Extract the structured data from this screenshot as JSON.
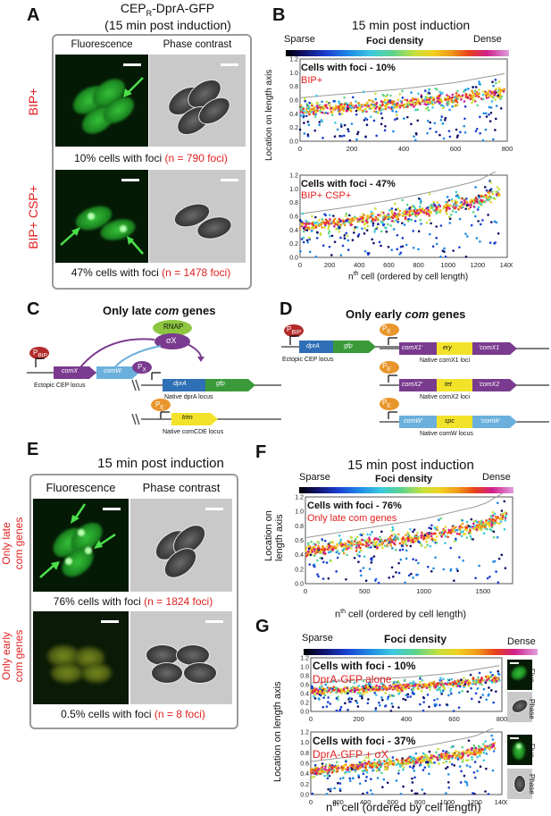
{
  "panels": {
    "a": {
      "letter": "A",
      "title_line1": "CEP",
      "title_sub": "R",
      "title_line1_end": "-DprA-GFP",
      "title_line2": "(15 min post induction)",
      "col_fluorescence": "Fluorescence",
      "col_phase": "Phase contrast",
      "row1_label": "BIP+",
      "row2_label": "BIP+ CSP+",
      "row1_caption": "10% cells with foci",
      "row1_count": "(n = 790 foci)",
      "row2_caption": "47% cells with foci",
      "row2_count": "(n = 1478 foci)"
    },
    "b": {
      "letter": "B",
      "title": "15 min post induction",
      "cbar_left": "Sparse",
      "cbar_mid": "Foci density",
      "cbar_right": "Dense",
      "plot1_title": "Cells with foci - 10%",
      "plot1_sub": "BIP+",
      "plot2_title": "Cells with foci - 47%",
      "plot2_sub": "BIP+ CSP+",
      "ylabel": "Location on length axis",
      "xlabel_pre": "n",
      "xlabel_sup": "th",
      "xlabel_post": " cell (ordered by cell length)"
    },
    "c": {
      "letter": "C",
      "title_pre": "Only late ",
      "title_it": "com",
      "title_post": " genes",
      "rnap": "RNAP",
      "sigma": "σX",
      "pbip": "P",
      "pbip_sub": "BIP",
      "comx": "comX",
      "comw": "comW",
      "px": "P",
      "px_sub": "X",
      "dpra": "dprA",
      "gfp": "gfp",
      "pe": "P",
      "pe_sub": "E",
      "trim": "trim",
      "ectopic": "Ectopic CEP locus",
      "native_dpra": "Native dprA locus",
      "native_comcde": "Native comCDE locus"
    },
    "d": {
      "letter": "D",
      "title_pre": "Only early ",
      "title_it": "com",
      "title_post": " genes",
      "pbip": "P",
      "pbip_sub": "BIP",
      "dpra": "dprA",
      "gfp": "gfp",
      "ectopic": "Ectopic CEP locus",
      "pe": "P",
      "pe_sub": "E",
      "comx1a": "comX1'",
      "ery": "ery",
      "comx1b": "'comX1",
      "native_x1": "Native comX1 loci",
      "comx2a": "comX2'",
      "tet": "tet",
      "comx2b": "'comX2",
      "native_x2": "Native comX2 loci",
      "comwa": "comW'",
      "spc": "spc",
      "comwb": "'comW",
      "native_w": "Native comW locus"
    },
    "e": {
      "letter": "E",
      "title": "15 min post induction",
      "col_fluorescence": "Fluorescence",
      "col_phase": "Phase contrast",
      "row1_label_a": "Only late",
      "row1_label_b": "com genes",
      "row2_label_a": "Only early",
      "row2_label_b": "com genes",
      "row1_caption": "76% cells with foci",
      "row1_count": "(n = 1824 foci)",
      "row2_caption": "0.5% cells with foci",
      "row2_count": "(n = 8 foci)"
    },
    "f": {
      "letter": "F",
      "title": "15 min post induction",
      "cbar_left": "Sparse",
      "cbar_mid": "Foci density",
      "cbar_right": "Dense",
      "plot_title": "Cells with foci - 76%",
      "plot_sub": "Only late com genes",
      "ylabel_a": "Location on",
      "ylabel_b": "length axis",
      "xlabel_pre": "n",
      "xlabel_sup": "th",
      "xlabel_post": " cell (ordered by cell length)"
    },
    "g": {
      "letter": "G",
      "cbar_left": "Sparse",
      "cbar_mid": "Foci density",
      "cbar_right": "Dense",
      "plot1_title": "Cells with foci - 10%",
      "plot1_sub": "DprA-GFP alone",
      "plot2_title": "Cells with foci - 37%",
      "plot2_sub": "DprA-GFP + σX",
      "fluo": "Fluo.",
      "phase": "Phase",
      "ylabel": "Location on  length axis",
      "xlabel_pre": "n",
      "xlabel_sup": "th",
      "xlabel_post": " cell (ordered by cell length)"
    }
  },
  "chart_data": [
    {
      "type": "scatter",
      "panel": "B-top",
      "title": "Cells with foci - 10%",
      "subtitle": "BIP+",
      "ylabel": "Location on length axis",
      "xlim": [
        0,
        800
      ],
      "ylim": [
        0,
        1.2
      ],
      "x_ticks": [
        0,
        200,
        400,
        600,
        800
      ],
      "y_ticks": [
        0.0,
        0.2,
        0.4,
        0.6,
        0.8,
        1.0,
        1.2
      ],
      "n_cells": 790,
      "ridge": {
        "x": [
          0,
          200,
          400,
          600,
          790
        ],
        "y": [
          0.45,
          0.5,
          0.55,
          0.62,
          0.72
        ]
      }
    },
    {
      "type": "scatter",
      "panel": "B-bottom",
      "title": "Cells with foci - 47%",
      "subtitle": "BIP+ CSP+",
      "xlabel": "nth cell (ordered by cell length)",
      "xlim": [
        0,
        1400
      ],
      "ylim": [
        0,
        1.2
      ],
      "x_ticks": [
        0,
        200,
        400,
        600,
        800,
        1000,
        1200,
        1400
      ],
      "y_ticks": [
        0.0,
        0.2,
        0.4,
        0.6,
        0.8,
        1.0,
        1.2
      ],
      "n_cells": 1350,
      "ridge": {
        "x": [
          0,
          300,
          600,
          900,
          1200,
          1350
        ],
        "y": [
          0.45,
          0.52,
          0.6,
          0.7,
          0.82,
          0.95
        ]
      }
    },
    {
      "type": "scatter",
      "panel": "F",
      "title": "Cells with foci - 76%",
      "subtitle": "Only late com genes",
      "xlabel": "nth cell (ordered by cell length)",
      "xlim": [
        0,
        1750
      ],
      "ylim": [
        0,
        1.2
      ],
      "x_ticks": [
        0,
        500,
        1000,
        1500
      ],
      "y_ticks": [
        0.0,
        0.2,
        0.4,
        0.6,
        0.8,
        1.0,
        1.2
      ],
      "n_cells": 1700,
      "ridge": {
        "x": [
          0,
          500,
          1000,
          1500,
          1700
        ],
        "y": [
          0.45,
          0.55,
          0.65,
          0.8,
          0.95
        ]
      }
    },
    {
      "type": "scatter",
      "panel": "G-top",
      "title": "Cells with foci - 10%",
      "subtitle": "DprA-GFP alone",
      "xlim": [
        0,
        800
      ],
      "ylim": [
        0,
        1.2
      ],
      "x_ticks": [
        0,
        200,
        400,
        600,
        800
      ],
      "y_ticks": [
        0.0,
        0.2,
        0.4,
        0.6,
        0.8,
        1.0,
        1.2
      ],
      "n_cells": 790,
      "ridge": {
        "x": [
          0,
          200,
          400,
          600,
          790
        ],
        "y": [
          0.45,
          0.5,
          0.55,
          0.62,
          0.75
        ]
      }
    },
    {
      "type": "scatter",
      "panel": "G-bottom",
      "title": "Cells with foci - 37%",
      "subtitle": "DprA-GFP + σX",
      "xlabel": "nth cell (ordered by cell length)",
      "xlim": [
        0,
        1400
      ],
      "ylim": [
        0,
        1.2
      ],
      "x_ticks": [
        0,
        200,
        400,
        600,
        800,
        1000,
        1200,
        1400
      ],
      "y_ticks": [
        0.0,
        0.2,
        0.4,
        0.6,
        0.8,
        1.0,
        1.2
      ],
      "n_cells": 1350,
      "ridge": {
        "x": [
          0,
          300,
          600,
          900,
          1200,
          1350
        ],
        "y": [
          0.45,
          0.52,
          0.6,
          0.7,
          0.82,
          0.95
        ]
      }
    }
  ]
}
